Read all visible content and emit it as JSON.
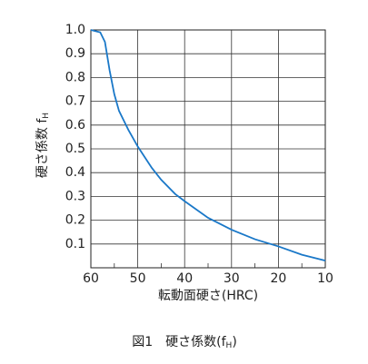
{
  "chart_data": {
    "type": "line",
    "y_label": {
      "text": "硬さ係数 f",
      "subscript": "H"
    },
    "x_label": "転動面硬さ(HRC)",
    "caption": [
      "図1　硬さ係数(f",
      "H",
      ")"
    ],
    "x": [
      60,
      58,
      57,
      56,
      55,
      54,
      52,
      50,
      47,
      45,
      42,
      40,
      35,
      30,
      25,
      20,
      15,
      10
    ],
    "series": [
      {
        "color": "#1a78c8",
        "values": [
          1.0,
          0.99,
          0.95,
          0.83,
          0.73,
          0.66,
          0.58,
          0.51,
          0.42,
          0.37,
          0.31,
          0.28,
          0.21,
          0.16,
          0.12,
          0.09,
          0.055,
          0.03
        ]
      }
    ],
    "xlim": [
      60,
      10
    ],
    "xticks": [
      60,
      50,
      40,
      30,
      20,
      10
    ],
    "xminorticks": [
      55,
      45,
      35,
      25,
      15
    ],
    "ylim": [
      0,
      1
    ],
    "yticks": [
      0.1,
      0.2,
      0.3,
      0.4,
      0.5,
      0.6,
      0.7,
      0.8,
      0.9,
      {
        "value": 1,
        "label": "1.0"
      }
    ],
    "grid": true
  }
}
